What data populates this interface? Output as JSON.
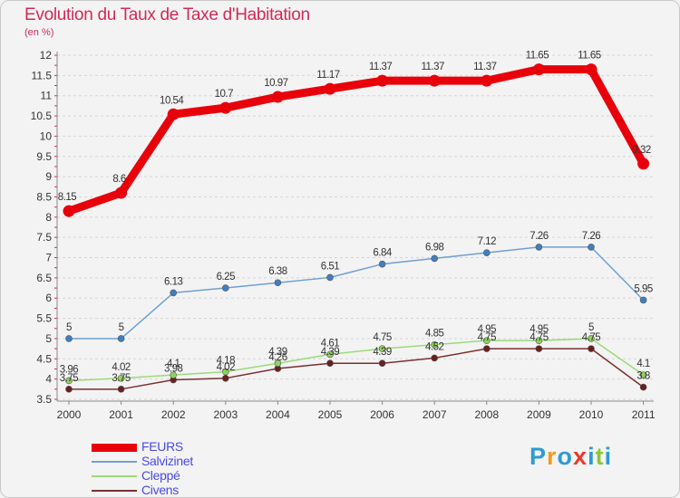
{
  "header": {
    "title": "Evolution du Taux de Taxe d'Habitation",
    "subtitle": "(en %)"
  },
  "logo": {
    "letters": [
      "P",
      "r",
      "o",
      "x",
      "i",
      "t",
      "i"
    ],
    "colors": [
      "#2f9bd0",
      "#f29a20",
      "#2f9bd0",
      "#e8392a",
      "#2f9bd0",
      "#8cc63e",
      "#2f9bd0"
    ]
  },
  "chart_data": {
    "type": "line",
    "x": [
      2000,
      2001,
      2002,
      2003,
      2004,
      2005,
      2006,
      2007,
      2008,
      2009,
      2010,
      2011
    ],
    "ylim": [
      3.5,
      12
    ],
    "yticks": [
      3.5,
      4,
      4.5,
      5,
      5.5,
      6,
      6.5,
      7,
      7.5,
      8,
      8.5,
      9,
      9.5,
      10,
      10.5,
      11,
      11.5,
      12
    ],
    "ytick_labels": [
      "3.5",
      "4",
      "4.5",
      "5",
      "5.5",
      "6",
      "6.5",
      "7",
      "7.5",
      "8",
      "8.5",
      "9",
      "9.5",
      "10",
      "10.5",
      "11",
      "11.5",
      "12"
    ],
    "grid": "horizontal",
    "legend_position": "bottom-left",
    "series": [
      {
        "name": "FEURS",
        "color": "#e8000b",
        "marker_color": "#e8000b",
        "values": [
          8.15,
          8.6,
          10.54,
          10.7,
          10.97,
          11.17,
          11.37,
          11.37,
          11.37,
          11.65,
          11.65,
          9.32
        ],
        "labels": [
          "8.15",
          "8.6",
          "10.54",
          "10.7",
          "10.97",
          "11.17",
          "11.37",
          "11.37",
          "11.37",
          "11.65",
          "11.65",
          "9.32"
        ]
      },
      {
        "name": "Salvizinet",
        "color": "#6fa0d0",
        "marker_color": "#3f7fc0",
        "values": [
          5,
          5,
          6.13,
          6.25,
          6.38,
          6.51,
          6.84,
          6.98,
          7.12,
          7.26,
          7.26,
          5.95
        ],
        "labels": [
          "5",
          "5",
          "6.13",
          "6.25",
          "6.38",
          "6.51",
          "6.84",
          "6.98",
          "7.12",
          "7.26",
          "7.26",
          "5.95"
        ]
      },
      {
        "name": "Cleppé",
        "color": "#9cd97a",
        "marker_color": "#8fd25e",
        "values": [
          3.96,
          4.02,
          4.1,
          4.18,
          4.39,
          4.61,
          4.75,
          4.85,
          4.95,
          4.95,
          5,
          4.1
        ],
        "labels": [
          "3.96",
          "4.02",
          "4.1",
          "4.18",
          "4.39",
          "4.61",
          "4.75",
          "4.85",
          "4.95",
          "4.95",
          "5",
          "4.1"
        ]
      },
      {
        "name": "Civens",
        "color": "#7a3030",
        "marker_color": "#6a1f1f",
        "values": [
          3.75,
          3.75,
          3.98,
          4.02,
          4.26,
          4.39,
          4.39,
          4.52,
          4.75,
          4.75,
          4.75,
          3.8
        ],
        "labels": [
          "3.75",
          "3.75",
          "3.98",
          "4.02",
          "4.26",
          "4.39",
          "4.39",
          "4.52",
          "4.75",
          "4.75",
          "4.75",
          "3.8"
        ]
      }
    ]
  }
}
